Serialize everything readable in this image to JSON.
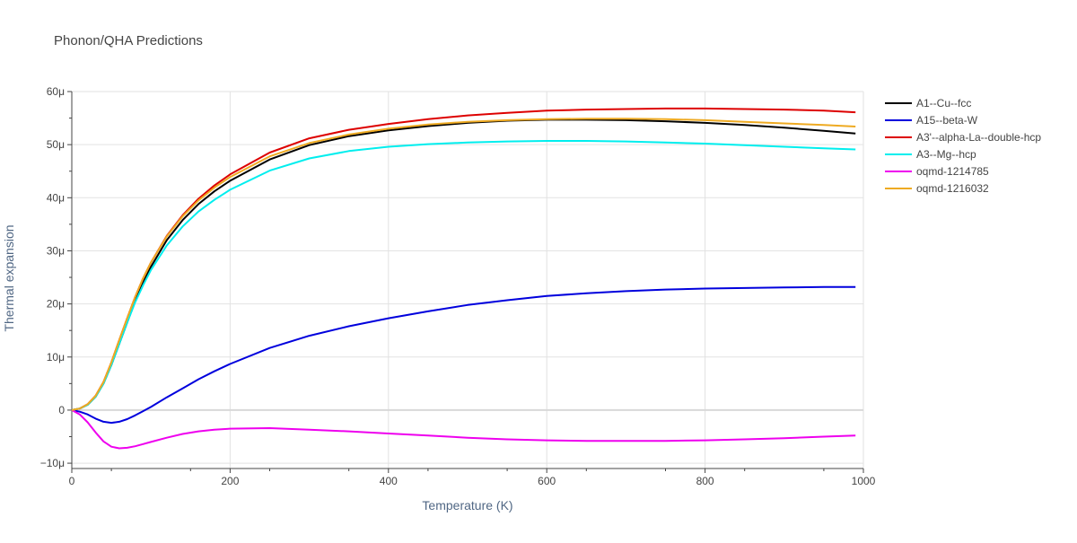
{
  "chart_data": {
    "type": "line",
    "title": "Phonon/QHA Predictions",
    "xlabel": "Temperature (K)",
    "ylabel": "Thermal expansion",
    "xlim": [
      0,
      1000
    ],
    "ylim": [
      -11,
      60
    ],
    "x_ticks": [
      0,
      200,
      400,
      600,
      800,
      1000
    ],
    "x_tick_labels": [
      "0",
      "200",
      "400",
      "600",
      "800",
      "1000"
    ],
    "y_ticks": [
      -10,
      0,
      10,
      20,
      30,
      40,
      50,
      60
    ],
    "y_tick_labels": [
      "−10μ",
      "0",
      "10μ",
      "20μ",
      "30μ",
      "40μ",
      "50μ",
      "60μ"
    ],
    "y_unit_note": "values in units of 1e-6 (μ)",
    "grid": true,
    "legend_position": "top-right-outside",
    "series": [
      {
        "name": "A1--Cu--fcc",
        "color": "#000000",
        "x": [
          0,
          10,
          20,
          30,
          40,
          50,
          60,
          70,
          80,
          90,
          100,
          120,
          140,
          160,
          180,
          200,
          250,
          300,
          350,
          400,
          450,
          500,
          550,
          600,
          650,
          700,
          750,
          800,
          850,
          900,
          950,
          990
        ],
        "y": [
          0,
          0.3,
          1.0,
          2.5,
          5.0,
          8.5,
          12.5,
          16.5,
          20.5,
          24.0,
          27.0,
          32.0,
          35.8,
          38.8,
          41.2,
          43.2,
          47.2,
          49.9,
          51.6,
          52.7,
          53.5,
          54.1,
          54.5,
          54.7,
          54.7,
          54.6,
          54.4,
          54.1,
          53.7,
          53.2,
          52.6,
          52.1
        ]
      },
      {
        "name": "A15--beta-W",
        "color": "#0000dd",
        "x": [
          0,
          10,
          20,
          30,
          40,
          50,
          60,
          70,
          80,
          90,
          100,
          120,
          140,
          160,
          180,
          200,
          250,
          300,
          350,
          400,
          450,
          500,
          550,
          600,
          650,
          700,
          750,
          800,
          850,
          900,
          950,
          990
        ],
        "y": [
          0,
          -0.3,
          -0.8,
          -1.6,
          -2.2,
          -2.4,
          -2.2,
          -1.7,
          -1.0,
          -0.2,
          0.6,
          2.4,
          4.1,
          5.8,
          7.3,
          8.7,
          11.7,
          14.0,
          15.8,
          17.3,
          18.6,
          19.8,
          20.7,
          21.5,
          22.0,
          22.4,
          22.7,
          22.9,
          23.0,
          23.1,
          23.2,
          23.2
        ]
      },
      {
        "name": "A3'--alpha-La--double-hcp",
        "color": "#dd0000",
        "x": [
          0,
          10,
          20,
          30,
          40,
          50,
          60,
          70,
          80,
          90,
          100,
          120,
          140,
          160,
          180,
          200,
          250,
          300,
          350,
          400,
          450,
          500,
          550,
          600,
          650,
          700,
          750,
          800,
          850,
          900,
          950,
          990
        ],
        "y": [
          0,
          0.3,
          1.1,
          2.7,
          5.3,
          9.0,
          13.2,
          17.3,
          21.3,
          24.8,
          27.8,
          32.8,
          36.7,
          39.8,
          42.3,
          44.4,
          48.5,
          51.2,
          52.8,
          53.9,
          54.8,
          55.5,
          56.0,
          56.4,
          56.6,
          56.7,
          56.8,
          56.8,
          56.7,
          56.6,
          56.4,
          56.1
        ]
      },
      {
        "name": "A3--Mg--hcp",
        "color": "#00eeee",
        "x": [
          0,
          10,
          20,
          30,
          40,
          50,
          60,
          70,
          80,
          90,
          100,
          120,
          140,
          160,
          180,
          200,
          250,
          300,
          350,
          400,
          450,
          500,
          550,
          600,
          650,
          700,
          750,
          800,
          850,
          900,
          950,
          990
        ],
        "y": [
          0,
          0.3,
          1.0,
          2.5,
          5.0,
          8.5,
          12.5,
          16.5,
          20.3,
          23.5,
          26.4,
          31.0,
          34.6,
          37.4,
          39.6,
          41.5,
          45.1,
          47.4,
          48.8,
          49.6,
          50.1,
          50.4,
          50.6,
          50.7,
          50.7,
          50.6,
          50.4,
          50.2,
          49.9,
          49.6,
          49.3,
          49.1
        ]
      },
      {
        "name": "oqmd-1214785",
        "color": "#ee00ee",
        "x": [
          0,
          10,
          20,
          30,
          40,
          50,
          60,
          70,
          80,
          90,
          100,
          120,
          140,
          160,
          180,
          200,
          250,
          300,
          350,
          400,
          450,
          500,
          550,
          600,
          650,
          700,
          750,
          800,
          850,
          900,
          950,
          990
        ],
        "y": [
          0,
          -0.8,
          -2.3,
          -4.2,
          -5.9,
          -6.9,
          -7.2,
          -7.1,
          -6.8,
          -6.4,
          -6.0,
          -5.2,
          -4.5,
          -4.0,
          -3.7,
          -3.5,
          -3.4,
          -3.7,
          -4.0,
          -4.4,
          -4.8,
          -5.2,
          -5.5,
          -5.7,
          -5.8,
          -5.8,
          -5.8,
          -5.7,
          -5.5,
          -5.3,
          -5.0,
          -4.8
        ]
      },
      {
        "name": "oqmd-1216032",
        "color": "#eeaa22",
        "x": [
          0,
          10,
          20,
          30,
          40,
          50,
          60,
          70,
          80,
          90,
          100,
          120,
          140,
          160,
          180,
          200,
          250,
          300,
          350,
          400,
          450,
          500,
          550,
          600,
          650,
          700,
          750,
          800,
          850,
          900,
          950,
          990
        ],
        "y": [
          0,
          0.3,
          1.1,
          2.7,
          5.3,
          9.0,
          13.2,
          17.3,
          21.3,
          24.8,
          27.8,
          32.7,
          36.5,
          39.5,
          41.9,
          43.9,
          47.8,
          50.3,
          51.9,
          53.0,
          53.8,
          54.3,
          54.6,
          54.8,
          54.9,
          54.9,
          54.8,
          54.6,
          54.3,
          54.0,
          53.7,
          53.4
        ]
      }
    ]
  }
}
